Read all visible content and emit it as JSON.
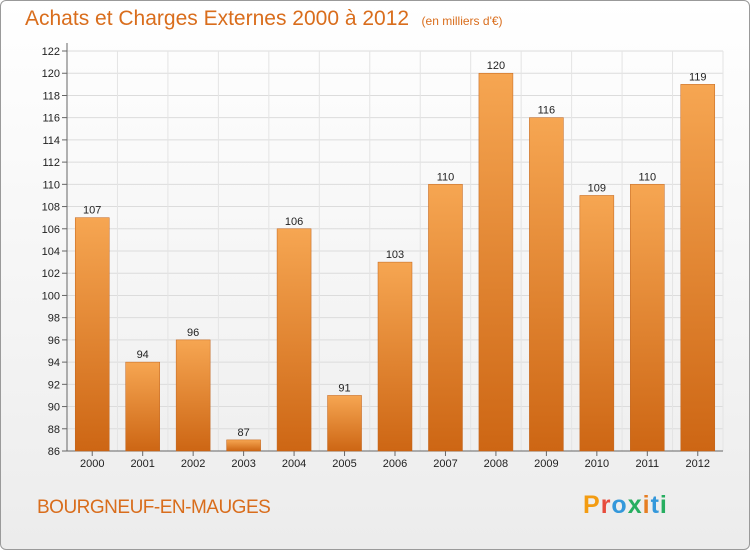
{
  "header": {
    "title": "Achats et Charges Externes 2000 à 2012",
    "subtitle": "(en milliers d'€)"
  },
  "footer": {
    "place": "BOURGNEUF-EN-MAUGES",
    "logo": "Proxiti"
  },
  "colors": {
    "accent": "#d96d1c",
    "bar_light": "#f6a652",
    "bar_dark": "#cd6614",
    "logo_letters": [
      "#f39c12",
      "#e74c3c",
      "#3498db",
      "#27ae60",
      "#e67e22",
      "#3498db",
      "#27ae60"
    ]
  },
  "chart_data": {
    "type": "bar",
    "categories": [
      "2000",
      "2001",
      "2002",
      "2003",
      "2004",
      "2005",
      "2006",
      "2007",
      "2008",
      "2009",
      "2010",
      "2011",
      "2012"
    ],
    "values": [
      107,
      94,
      96,
      87,
      106,
      91,
      103,
      110,
      120,
      116,
      109,
      110,
      119
    ],
    "data_labels": [
      "107",
      "94",
      "96",
      "87",
      "106",
      "91",
      "103",
      "110",
      "120",
      "116",
      "109",
      "110",
      "119"
    ],
    "y_ticks": [
      "86",
      "88",
      "90",
      "92",
      "94",
      "96",
      "98",
      "100",
      "102",
      "104",
      "106",
      "108",
      "110",
      "112",
      "114",
      "116",
      "118",
      "120",
      "122"
    ],
    "ylim": [
      86,
      122
    ],
    "grid": true
  }
}
